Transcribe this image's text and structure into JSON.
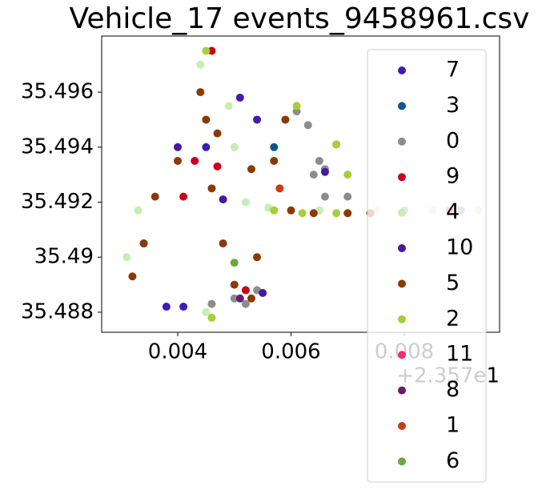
{
  "chart_data": {
    "type": "scatter",
    "title": "Vehicle_17 events_9458961.csv",
    "x_offset_text": "+2.357e1",
    "xlim": [
      0.002657,
      0.009682
    ],
    "ylim": [
      35.48727,
      35.49804
    ],
    "xticks": [
      0.004,
      0.006,
      0.008
    ],
    "yticks": [
      35.488,
      35.49,
      35.492,
      35.494,
      35.496
    ],
    "series": [
      {
        "name": "7",
        "color": "#3d1db4",
        "x": [
          0.0041,
          0.0038,
          0.0051,
          0.0054,
          0.0045,
          0.0034
        ],
        "values": [
          35.4882,
          35.4882,
          35.4958,
          35.495,
          35.494,
          35.4905
        ]
      },
      {
        "name": "3",
        "color": "#0b5791",
        "x": [
          0.0057
        ],
        "values": [
          35.494
        ]
      },
      {
        "name": "0",
        "color": "#8c8c8c",
        "x": [
          0.0061,
          0.0063,
          0.0065,
          0.0068,
          0.0066,
          0.0064,
          0.0066,
          0.007,
          0.008,
          0.009,
          0.005,
          0.0052,
          0.0054,
          0.0046
        ],
        "values": [
          35.4953,
          35.4948,
          35.4935,
          35.4941,
          35.4932,
          35.493,
          35.4922,
          35.4922,
          35.4917,
          35.4917,
          35.4885,
          35.4883,
          35.4888,
          35.4883
        ]
      },
      {
        "name": "9",
        "color": "#c8001e",
        "x": [
          0.0043,
          0.0046,
          0.0047,
          0.0052,
          0.0041
        ],
        "values": [
          35.4935,
          35.4975,
          35.4933,
          35.4888,
          35.4922
        ]
      },
      {
        "name": "4",
        "color": "#c6eeb2",
        "x": [
          0.0033,
          0.0031,
          0.0044,
          0.0049,
          0.005,
          0.0052,
          0.0056,
          0.0065,
          0.0075,
          0.0085,
          0.0093,
          0.0045
        ],
        "values": [
          35.4917,
          35.49,
          35.497,
          35.4955,
          35.494,
          35.492,
          35.4918,
          35.4917,
          35.4917,
          35.4917,
          35.4917,
          35.488
        ]
      },
      {
        "name": "10",
        "color": "#4a18a0",
        "x": [
          0.004,
          0.0048,
          0.0066,
          0.0055
        ],
        "values": [
          35.494,
          35.4921,
          35.4931,
          35.4887
        ]
      },
      {
        "name": "5",
        "color": "#8a3a05",
        "x": [
          0.0044,
          0.004,
          0.0036,
          0.0034,
          0.0032,
          0.0046,
          0.0048,
          0.005,
          0.0054,
          0.0057,
          0.0059,
          0.0053,
          0.0047,
          0.0045,
          0.0053,
          0.006,
          0.0064,
          0.007,
          0.0074
        ],
        "values": [
          35.496,
          35.4935,
          35.4922,
          35.4905,
          35.4893,
          35.4925,
          35.4905,
          35.489,
          35.49,
          35.4935,
          35.495,
          35.4932,
          35.4945,
          35.495,
          35.4885,
          35.4917,
          35.4916,
          35.4916,
          35.4916
        ]
      },
      {
        "name": "2",
        "color": "#a5cf3b",
        "x": [
          0.0045,
          0.0061,
          0.0068,
          0.007,
          0.0046,
          0.0057,
          0.0062,
          0.0068
        ],
        "values": [
          35.4975,
          35.4955,
          35.4941,
          35.493,
          35.4878,
          35.4917,
          35.4916,
          35.4916
        ]
      },
      {
        "name": "11",
        "color": "#f0306c",
        "x": [
          0.0088
        ],
        "values": [
          35.4917
        ]
      },
      {
        "name": "8",
        "color": "#6a1c6c",
        "x": [
          0.0051
        ],
        "values": [
          35.4885
        ]
      },
      {
        "name": "1",
        "color": "#c83c14",
        "x": [
          0.0058
        ],
        "values": [
          35.4925
        ]
      },
      {
        "name": "6",
        "color": "#6aa83c",
        "x": [
          0.005
        ],
        "values": [
          35.4898
        ]
      }
    ]
  }
}
